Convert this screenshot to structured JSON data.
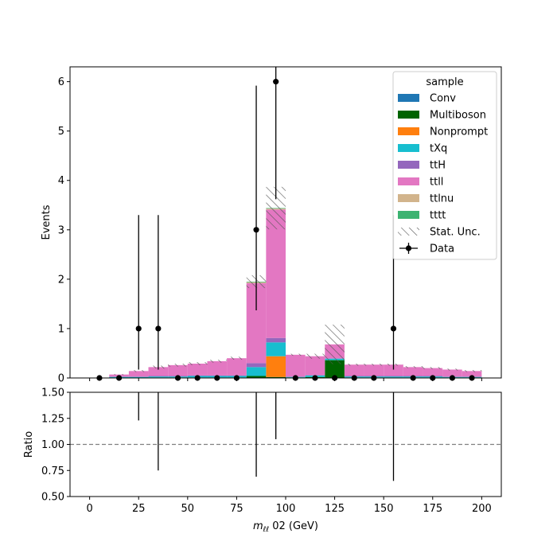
{
  "chart_data": [
    {
      "type": "bar",
      "stacked": true,
      "panel": "main",
      "ylabel": "Events",
      "ylim": [
        0,
        6.3
      ],
      "xlim": [
        -10,
        210
      ],
      "yticks": [
        0,
        1,
        2,
        3,
        4,
        5,
        6
      ],
      "xticks": [
        0,
        25,
        50,
        75,
        100,
        125,
        150,
        175,
        200
      ],
      "bin_edges": [
        0,
        10,
        20,
        30,
        40,
        50,
        60,
        70,
        80,
        90,
        100,
        110,
        120,
        130,
        140,
        150,
        160,
        170,
        180,
        190,
        200
      ],
      "legend": {
        "title": "sample",
        "placement": "top-right",
        "entries": [
          "Conv",
          "Multiboson",
          "Nonprompt",
          "tXq",
          "ttH",
          "ttll",
          "ttlnu",
          "tttt",
          "Stat. Unc.",
          "Data"
        ]
      },
      "series": [
        {
          "name": "Conv",
          "color": "#1f77b4",
          "values": [
            0,
            0,
            0,
            0,
            0,
            0,
            0,
            0,
            0,
            0,
            0,
            0,
            0,
            0,
            0,
            0,
            0,
            0,
            0,
            0
          ]
        },
        {
          "name": "Multiboson",
          "color": "#006400",
          "values": [
            0,
            0,
            0,
            0.01,
            0.01,
            0.01,
            0.01,
            0.01,
            0.04,
            0.02,
            0.01,
            0.02,
            0.36,
            0.01,
            0.01,
            0.01,
            0.01,
            0.01,
            0.01,
            0.01
          ]
        },
        {
          "name": "Nonprompt",
          "color": "#ff7f0e",
          "values": [
            0,
            0,
            0,
            0,
            0,
            0,
            0,
            0,
            0,
            0.42,
            0,
            0,
            0,
            0,
            0,
            0,
            0,
            0,
            0,
            0
          ]
        },
        {
          "name": "tXq",
          "color": "#17becf",
          "values": [
            0,
            0.02,
            0.02,
            0.02,
            0.02,
            0.03,
            0.03,
            0.03,
            0.18,
            0.28,
            0.01,
            0.03,
            0.03,
            0.02,
            0.02,
            0.02,
            0.02,
            0.02,
            0.01,
            0.01
          ]
        },
        {
          "name": "ttH",
          "color": "#9467bd",
          "values": [
            0,
            0.01,
            0.01,
            0.01,
            0.01,
            0.01,
            0.01,
            0.01,
            0.08,
            0.09,
            0.01,
            0.01,
            0.01,
            0.01,
            0.01,
            0.01,
            0.01,
            0.01,
            0.01,
            0.01
          ]
        },
        {
          "name": "ttll",
          "color": "#e377c2",
          "values": [
            0,
            0.04,
            0.11,
            0.18,
            0.22,
            0.24,
            0.29,
            0.35,
            1.62,
            2.6,
            0.44,
            0.38,
            0.28,
            0.23,
            0.23,
            0.23,
            0.18,
            0.16,
            0.14,
            0.11
          ]
        },
        {
          "name": "ttlnu",
          "color": "#d2b48c",
          "values": [
            0,
            0,
            0,
            0,
            0,
            0,
            0,
            0,
            0.02,
            0.02,
            0,
            0,
            0,
            0,
            0,
            0,
            0,
            0,
            0,
            0
          ]
        },
        {
          "name": "tttt",
          "color": "#3cb371",
          "values": [
            0,
            0,
            0,
            0,
            0,
            0,
            0,
            0,
            0.01,
            0.01,
            0,
            0,
            0,
            0,
            0,
            0,
            0,
            0,
            0,
            0
          ]
        }
      ],
      "stat_unc": [
        0,
        0.01,
        0.02,
        0.03,
        0.03,
        0.03,
        0.03,
        0.03,
        0.13,
        0.43,
        0.02,
        0.05,
        0.4,
        0.02,
        0.02,
        0.02,
        0.02,
        0.02,
        0.02,
        0.02
      ],
      "data": {
        "name": "Data",
        "x": [
          5,
          15,
          25,
          35,
          45,
          55,
          65,
          75,
          85,
          95,
          105,
          115,
          125,
          135,
          145,
          155,
          165,
          175,
          185,
          195
        ],
        "y": [
          0,
          0,
          1,
          1,
          0,
          0,
          0,
          0,
          3,
          6,
          0,
          0,
          0,
          0,
          0,
          1,
          0,
          0,
          0,
          0
        ],
        "err_low": [
          0,
          0,
          0.83,
          0.83,
          0,
          0,
          0,
          0,
          1.63,
          2.38,
          0,
          0,
          0,
          0,
          0,
          0.83,
          0,
          0,
          0,
          0
        ],
        "err_high": [
          0,
          0,
          2.3,
          2.3,
          0,
          0,
          0,
          0,
          2.92,
          3.58,
          0,
          0,
          0,
          0,
          0,
          2.3,
          0,
          0,
          0,
          0
        ]
      }
    },
    {
      "type": "scatter",
      "panel": "ratio",
      "xlabel": "m_{\\ell\\ell} 02 (GeV)",
      "xlabel_main": "m",
      "xlabel_sub": "ℓℓ",
      "xlabel_rest": " 02 (GeV)",
      "ylabel": "Ratio",
      "ylim": [
        0.5,
        1.5
      ],
      "yticks": [
        "0.50",
        "0.75",
        "1.00",
        "1.25",
        "1.50"
      ],
      "reference_line": 1.0,
      "errorbars": [
        {
          "x": 25,
          "low": 1.23,
          "high": 1.5
        },
        {
          "x": 35,
          "low": 0.75,
          "high": 1.5
        },
        {
          "x": 85,
          "low": 0.69,
          "high": 1.5
        },
        {
          "x": 95,
          "low": 1.05,
          "high": 1.5
        },
        {
          "x": 155,
          "low": 0.65,
          "high": 1.5
        }
      ]
    }
  ]
}
